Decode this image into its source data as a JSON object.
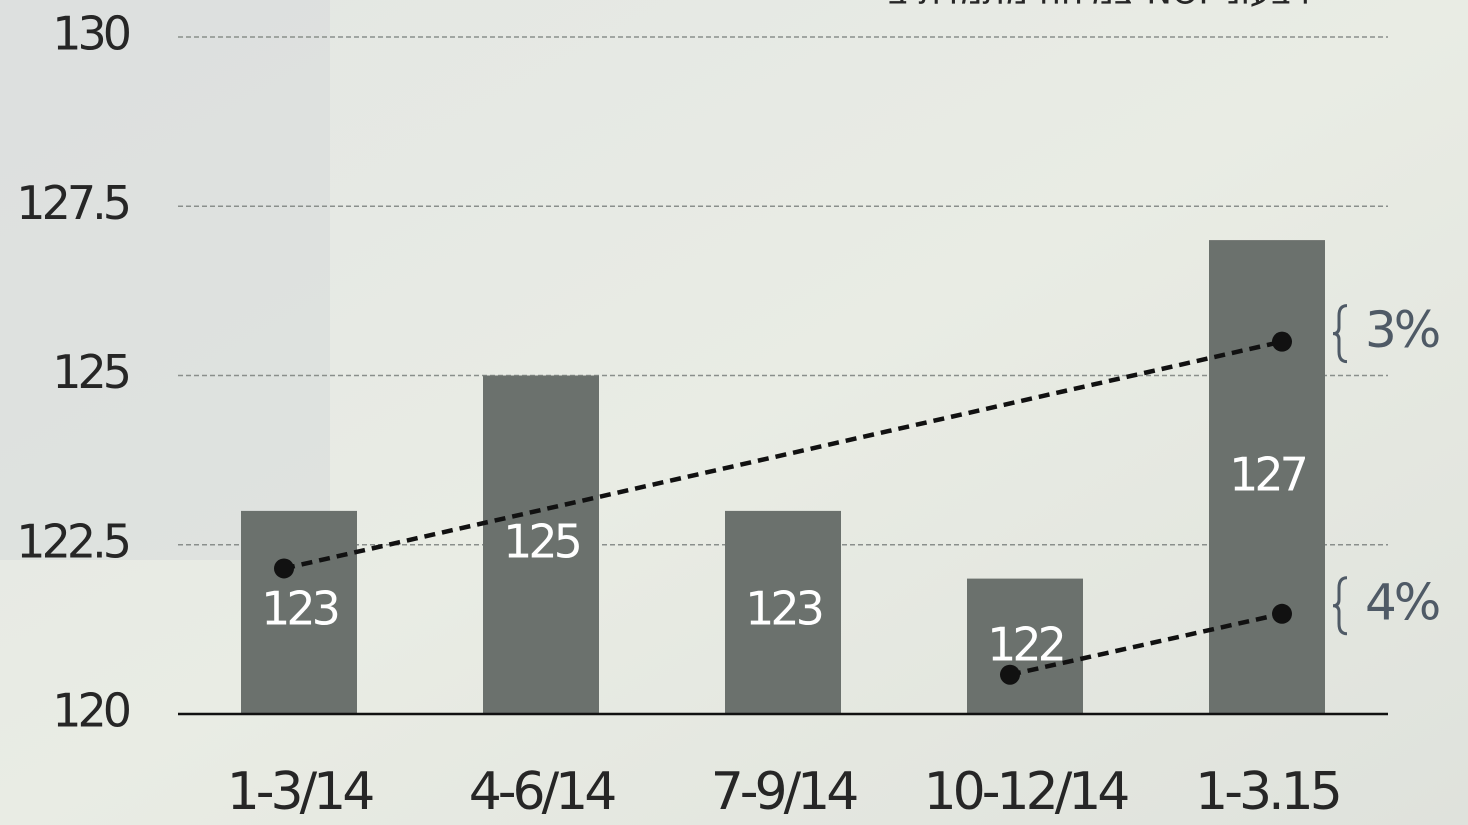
{
  "chart_data": {
    "type": "bar",
    "title": "צמיחה מתמדת ב-NOI רבעוני",
    "categories": [
      "1-3/14",
      "4-6/14",
      "7-9/14",
      "10-12/14",
      "1-3.15"
    ],
    "values": [
      123,
      125,
      123,
      122,
      127
    ],
    "color": "#6b716d",
    "ylim": [
      120,
      130
    ],
    "yticks": [
      120,
      122.5,
      125,
      127.5,
      130
    ],
    "grid": true,
    "trend_lines": [
      {
        "label": "3%",
        "x": [
          "1-3/14",
          "1-3.15"
        ],
        "values": [
          122.15,
          125.5
        ]
      },
      {
        "label": "4%",
        "x": [
          "10-12/14",
          "1-3.15"
        ],
        "values": [
          120.58,
          121.48
        ]
      }
    ]
  }
}
